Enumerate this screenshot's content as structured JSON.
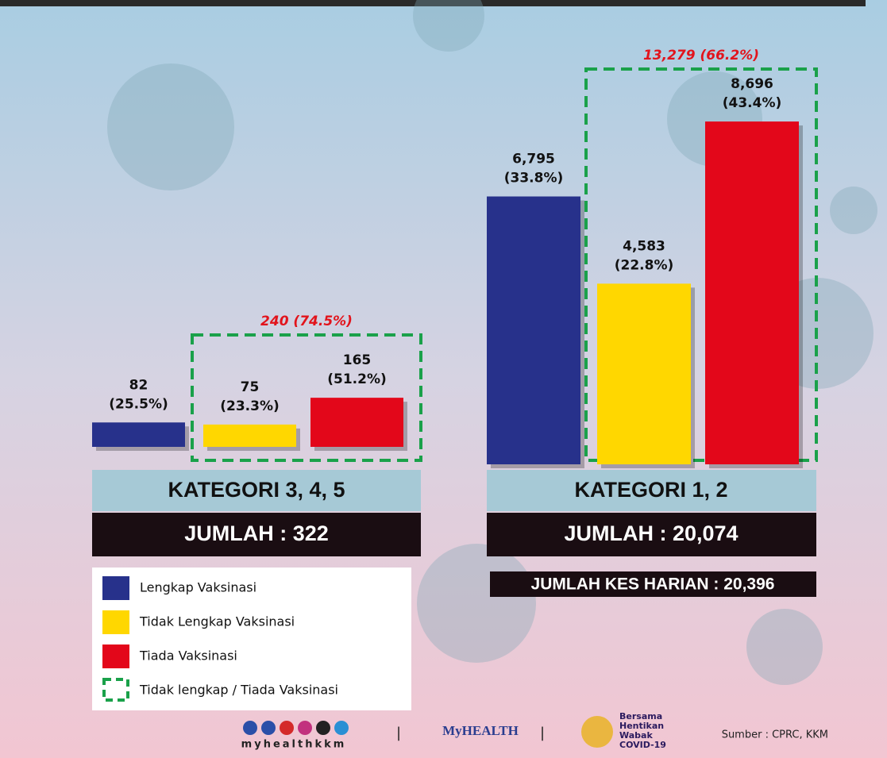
{
  "chart_data": [
    {
      "type": "bar",
      "category": "KATEGORI 3, 4, 5",
      "total": "JUMLAH : 322",
      "values": [
        82,
        75,
        165
      ],
      "shares": [
        25.5,
        23.3,
        51.2
      ],
      "share_labels": [
        "(25.5%)",
        "(23.3%)",
        "(51.2%)"
      ],
      "group_annotation": "240 (74.5%)",
      "ylim": [
        0,
        1200
      ]
    },
    {
      "type": "bar",
      "category": "KATEGORI 1, 2",
      "total": "JUMLAH : 20,074",
      "values": [
        6795,
        4583,
        8696
      ],
      "value_labels": [
        "6,795",
        "4,583",
        "8,696"
      ],
      "shares": [
        33.8,
        22.8,
        43.4
      ],
      "share_labels": [
        "(33.8%)",
        "(22.8%)",
        "(43.4%)"
      ],
      "group_annotation": "13,279 (66.2%)",
      "ylim": [
        0,
        9000
      ]
    }
  ],
  "legend": [
    {
      "name": "Lengkap Vaksinasi",
      "color": "#27318b"
    },
    {
      "name": "Tidak Lengkap Vaksinasi",
      "color": "#ffd700"
    },
    {
      "name": "Tiada Vaksinasi",
      "color": "#e3071a"
    }
  ],
  "legend_group": "Tidak lengkap / Tiada Vaksinasi",
  "daily_total": "JUMLAH KES HARIAN : 20,396",
  "footer": {
    "handle": "myhealthkkm",
    "separator": "|",
    "logo": "MyHEALTH",
    "campaign": [
      "Bersama",
      "Hentikan",
      "Wabak",
      "COVID-19"
    ],
    "source": "Sumber : CPRC, KKM"
  }
}
